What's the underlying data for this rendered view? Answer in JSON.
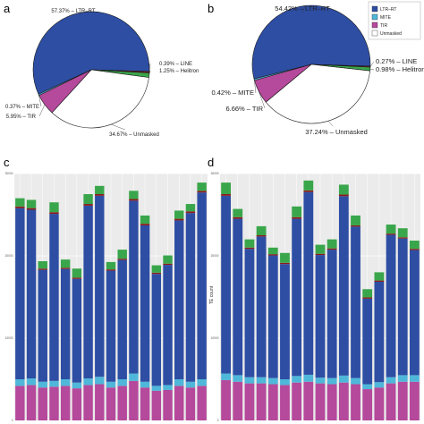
{
  "colors": {
    "LTR-RT": "#2e4ea4",
    "MITE": "#4fb7d9",
    "TIR": "#b5499b",
    "LINE": "#8b1a1a",
    "Helitron": "#3aa64b",
    "Unmasked": "#ffffff",
    "panel_bg": "#ebebeb",
    "grid": "#ffffff"
  },
  "legend": {
    "entries": [
      "LTR–RT",
      "MITE",
      "TIR",
      "Unmasked"
    ],
    "keys": [
      "LTR-RT",
      "MITE",
      "TIR",
      "Unmasked"
    ]
  },
  "chart_data": [
    {
      "panel": "a",
      "type": "pie",
      "slices": [
        {
          "key": "LTR-RT",
          "value": 57.37,
          "label": "57.37% – LTR–RT"
        },
        {
          "key": "LINE",
          "value": 0.39,
          "label": "0.39% – LINE"
        },
        {
          "key": "Helitron",
          "value": 1.25,
          "label": "1.25% – Helitron"
        },
        {
          "key": "Unmasked",
          "value": 34.67,
          "label": "34.67% – Unmasked"
        },
        {
          "key": "TIR",
          "value": 5.95,
          "label": "5.95% – TIR"
        },
        {
          "key": "MITE",
          "value": 0.37,
          "label": "0.37% – MITE"
        }
      ]
    },
    {
      "panel": "b",
      "type": "pie",
      "slices": [
        {
          "key": "LTR-RT",
          "value": 54.42,
          "label": "54.42% – LTR–RT"
        },
        {
          "key": "LINE",
          "value": 0.27,
          "label": "0.27% – LINE"
        },
        {
          "key": "Helitron",
          "value": 0.98,
          "label": "0.98% – Helitron"
        },
        {
          "key": "Unmasked",
          "value": 37.24,
          "label": "37.24% – Unmasked"
        },
        {
          "key": "TIR",
          "value": 6.66,
          "label": "6.66% – TIR"
        },
        {
          "key": "MITE",
          "value": 0.42,
          "label": "0.42% – MITE"
        }
      ]
    },
    {
      "panel": "c",
      "type": "bar",
      "stacked": true,
      "ylim": [
        0,
        30000
      ],
      "yticks": [
        0,
        10000,
        20000,
        30000
      ],
      "ylabel": "",
      "series": [
        {
          "key": "TIR",
          "values": [
            4200,
            4300,
            4000,
            4100,
            4200,
            3900,
            4300,
            4400,
            4000,
            4200,
            4800,
            4000,
            3600,
            3700,
            4200,
            4000,
            4200
          ]
        },
        {
          "key": "MITE",
          "values": [
            800,
            800,
            700,
            700,
            800,
            700,
            800,
            900,
            700,
            800,
            900,
            700,
            600,
            600,
            800,
            700,
            800
          ]
        },
        {
          "key": "LTR-RT",
          "values": [
            20800,
            20500,
            13600,
            20300,
            13400,
            12600,
            21000,
            22000,
            13500,
            14500,
            21000,
            19000,
            13600,
            14600,
            19300,
            20500,
            22700
          ]
        },
        {
          "key": "LINE",
          "values": [
            200,
            200,
            150,
            200,
            150,
            150,
            200,
            200,
            150,
            150,
            200,
            200,
            150,
            150,
            200,
            200,
            200
          ]
        },
        {
          "key": "Helitron",
          "values": [
            1000,
            1000,
            900,
            1200,
            1000,
            1100,
            1200,
            1000,
            900,
            1100,
            1000,
            1000,
            900,
            1000,
            1000,
            900,
            1000
          ]
        }
      ]
    },
    {
      "panel": "d",
      "type": "bar",
      "stacked": true,
      "ylim": [
        0,
        30000
      ],
      "yticks": [
        0,
        10000,
        20000,
        30000
      ],
      "ylabel": "TE count",
      "series": [
        {
          "key": "TIR",
          "values": [
            4900,
            4700,
            4500,
            4500,
            4400,
            4300,
            4600,
            4700,
            4500,
            4400,
            4600,
            4400,
            3800,
            4000,
            4500,
            4700,
            4700
          ]
        },
        {
          "key": "MITE",
          "values": [
            800,
            800,
            750,
            750,
            750,
            700,
            800,
            850,
            700,
            750,
            850,
            750,
            600,
            650,
            750,
            800,
            800
          ]
        },
        {
          "key": "LTR-RT",
          "values": [
            21600,
            19000,
            15600,
            17100,
            14900,
            14000,
            19100,
            22200,
            14900,
            15600,
            21800,
            18400,
            10400,
            12200,
            17300,
            16600,
            15200
          ]
        },
        {
          "key": "LINE",
          "values": [
            200,
            200,
            150,
            150,
            150,
            150,
            200,
            200,
            150,
            150,
            200,
            150,
            150,
            150,
            150,
            150,
            150
          ]
        },
        {
          "key": "Helitron",
          "values": [
            1400,
            1000,
            1000,
            1100,
            800,
            1200,
            1300,
            1200,
            1100,
            1100,
            1200,
            1200,
            1000,
            1000,
            1100,
            1100,
            1000
          ]
        }
      ]
    }
  ]
}
